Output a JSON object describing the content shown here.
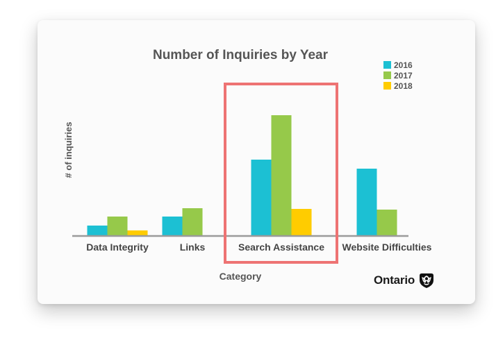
{
  "chart_data": {
    "type": "bar",
    "title": "Number of Inquiries by Year",
    "xlabel": "Category",
    "ylabel": "# of inquiries",
    "categories": [
      "Data Integrity",
      "Links",
      "Search Assistance",
      "Website Difficulties"
    ],
    "series": [
      {
        "name": "2016",
        "color": "#1cc0d3",
        "values": [
          15,
          28,
          110,
          97
        ]
      },
      {
        "name": "2017",
        "color": "#96c94a",
        "values": [
          28,
          40,
          174,
          38
        ]
      },
      {
        "name": "2018",
        "color": "#ffcc00",
        "values": [
          8,
          null,
          39,
          null
        ]
      }
    ],
    "ylim": [
      0,
      180
    ],
    "grid": false,
    "legend": "top-right",
    "highlight": {
      "category": "Search Assistance",
      "color": "#ee7373"
    }
  },
  "branding": {
    "logo_text": "Ontario",
    "logo_icon": "ontario-trillium-icon"
  }
}
